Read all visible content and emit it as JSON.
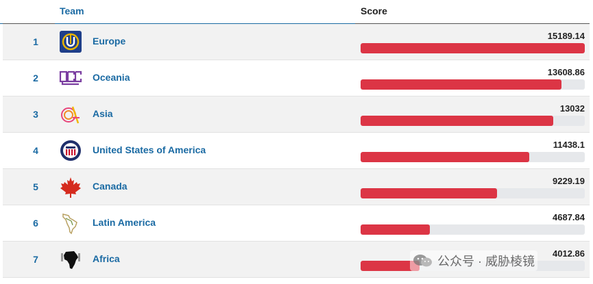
{
  "header": {
    "team_label": "Team",
    "score_label": "Score"
  },
  "max_score": 15189.14,
  "colors": {
    "accent": "#1a6aa3",
    "bar": "#dc3545",
    "track": "#e6e8eb"
  },
  "rows": [
    {
      "rank": "1",
      "team": "Europe",
      "score": "15189.14",
      "value": 15189.14,
      "icon": "europe-logo-icon"
    },
    {
      "rank": "2",
      "team": "Oceania",
      "score": "13608.86",
      "value": 13608.86,
      "icon": "oceania-logo-icon"
    },
    {
      "rank": "3",
      "team": "Asia",
      "score": "13032",
      "value": 13032,
      "icon": "asia-logo-icon"
    },
    {
      "rank": "4",
      "team": "United States of America",
      "score": "11438.1",
      "value": 11438.1,
      "icon": "usa-logo-icon"
    },
    {
      "rank": "5",
      "team": "Canada",
      "score": "9229.19",
      "value": 9229.19,
      "icon": "maple-leaf-icon"
    },
    {
      "rank": "6",
      "team": "Latin America",
      "score": "4687.84",
      "value": 4687.84,
      "icon": "latin-america-map-icon"
    },
    {
      "rank": "7",
      "team": "Africa",
      "score": "4012.86",
      "value": 4012.86,
      "icon": "africa-map-icon"
    }
  ],
  "watermark": {
    "text": "公众号 · 威胁棱镜",
    "icon": "wechat-icon"
  }
}
